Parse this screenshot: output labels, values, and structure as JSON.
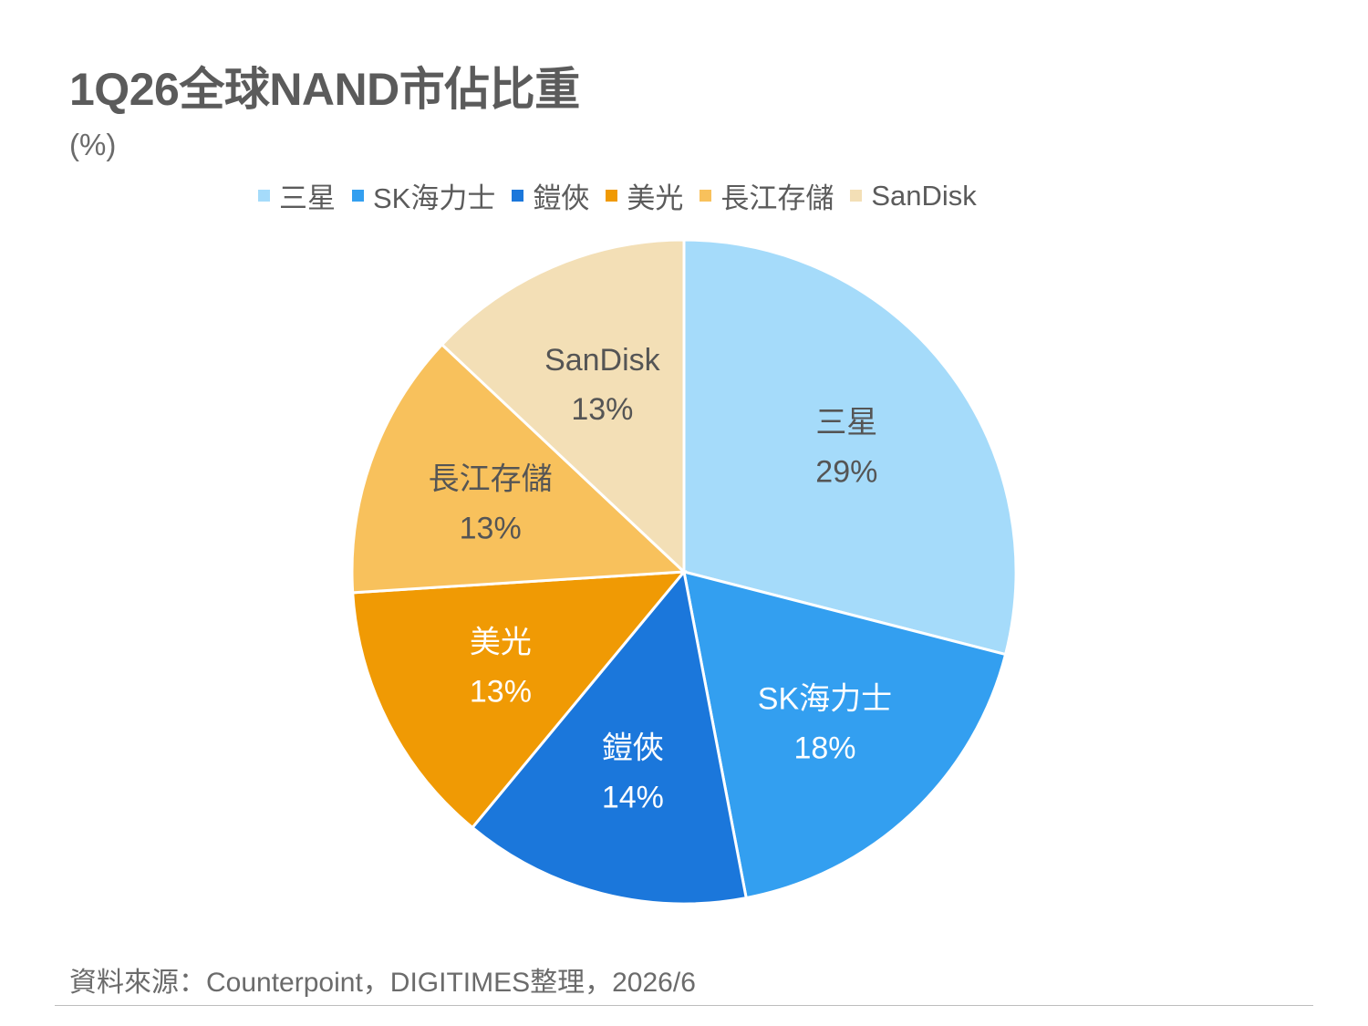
{
  "title": "1Q26全球NAND市佔比重",
  "unit": "(%)",
  "footnote": "資料來源：Counterpoint，DIGITIMES整理，2026/6",
  "chart_data": {
    "type": "pie",
    "title": "1Q26全球NAND市佔比重",
    "unit": "(%)",
    "legend_position": "top",
    "slices": [
      {
        "name": "三星",
        "value": 29,
        "label": "29%",
        "color": "#a5dbfa",
        "text_color": "#555555"
      },
      {
        "name": "SK海力士",
        "value": 18,
        "label": "18%",
        "color": "#339ff0",
        "text_color": "#ffffff"
      },
      {
        "name": "鎧俠",
        "value": 14,
        "label": "14%",
        "color": "#1b77db",
        "text_color": "#ffffff"
      },
      {
        "name": "美光",
        "value": 13,
        "label": "13%",
        "color": "#f09a04",
        "text_color": "#ffffff"
      },
      {
        "name": "長江存儲",
        "value": 13,
        "label": "13%",
        "color": "#f8c15c",
        "text_color": "#555555"
      },
      {
        "name": "SanDisk",
        "value": 13,
        "label": "13%",
        "color": "#f3dfb6",
        "text_color": "#555555"
      }
    ]
  }
}
